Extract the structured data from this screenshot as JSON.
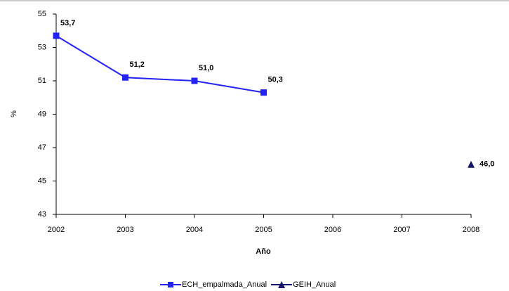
{
  "chart_data": {
    "type": "line",
    "x": [
      2002,
      2003,
      2004,
      2005,
      2006,
      2007,
      2008
    ],
    "xlim": [
      2002,
      2008
    ],
    "xticks": [
      2002,
      2003,
      2004,
      2005,
      2006,
      2007,
      2008
    ],
    "ylim": [
      43,
      55
    ],
    "yticks": [
      43,
      45,
      47,
      49,
      51,
      53,
      55
    ],
    "x_label": "Año",
    "y_label": "%",
    "series": [
      {
        "name": "ECH_empalmada_Anual",
        "color": "#2323f5",
        "marker": "square",
        "values": [
          53.7,
          51.2,
          51.0,
          50.3,
          null,
          null,
          null
        ],
        "value_labels": [
          "53,7",
          "51,2",
          "51,0",
          "50,3",
          null,
          null,
          null
        ]
      },
      {
        "name": "GEIH_Anual",
        "color": "#15156e",
        "marker": "triangle",
        "values": [
          null,
          null,
          null,
          null,
          null,
          null,
          46.0
        ],
        "value_labels": [
          null,
          null,
          null,
          null,
          null,
          null,
          "46,0"
        ]
      }
    ]
  }
}
